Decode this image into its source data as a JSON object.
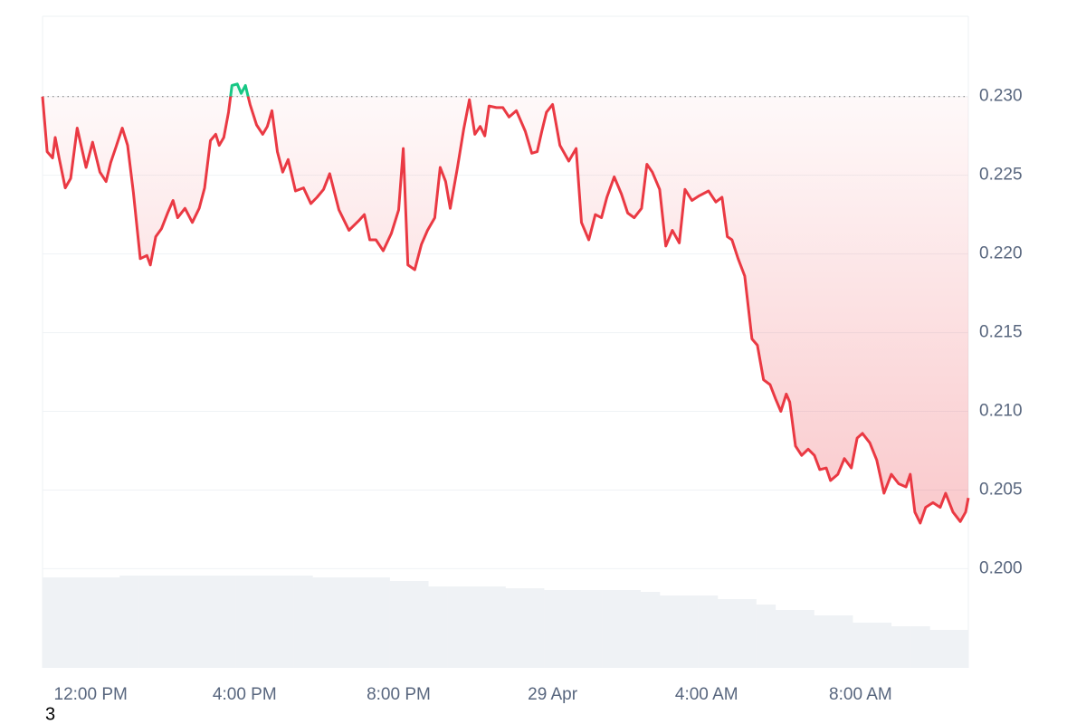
{
  "chart_data": {
    "type": "line",
    "xlim": [
      -1.25,
      22.8
    ],
    "xticks": [
      {
        "value": 0,
        "label": "12:00 PM"
      },
      {
        "value": 4,
        "label": "4:00 PM"
      },
      {
        "value": 8,
        "label": "8:00 PM"
      },
      {
        "value": 12,
        "label": "29 Apr"
      },
      {
        "value": 16,
        "label": "4:00 AM"
      },
      {
        "value": 20,
        "label": "8:00 AM"
      }
    ],
    "ylim": [
      0.1937,
      0.2351
    ],
    "yticks": [
      {
        "value": 0.2,
        "label": "0.200"
      },
      {
        "value": 0.205,
        "label": "0.205"
      },
      {
        "value": 0.21,
        "label": "0.210"
      },
      {
        "value": 0.215,
        "label": "0.215"
      },
      {
        "value": 0.22,
        "label": "0.220"
      },
      {
        "value": 0.225,
        "label": "0.225"
      },
      {
        "value": 0.23,
        "label": "0.230"
      }
    ],
    "grid": true,
    "baseline": 0.23,
    "color_up": "#16c784",
    "color_down": "#ea3943",
    "x": [
      -1.25,
      -1.13,
      -0.99,
      -0.92,
      -0.82,
      -0.66,
      -0.52,
      -0.35,
      -0.12,
      0.05,
      0.24,
      0.4,
      0.52,
      0.66,
      0.82,
      0.96,
      1.11,
      1.29,
      1.46,
      1.55,
      1.69,
      1.84,
      2.0,
      2.14,
      2.26,
      2.45,
      2.64,
      2.82,
      2.96,
      3.11,
      3.25,
      3.34,
      3.46,
      3.58,
      3.67,
      3.81,
      3.91,
      4.02,
      4.14,
      4.31,
      4.47,
      4.59,
      4.71,
      4.85,
      4.99,
      5.13,
      5.32,
      5.53,
      5.72,
      5.88,
      6.05,
      6.21,
      6.45,
      6.71,
      6.96,
      7.11,
      7.25,
      7.41,
      7.6,
      7.81,
      8.0,
      8.12,
      8.24,
      8.42,
      8.59,
      8.75,
      8.94,
      9.08,
      9.22,
      9.34,
      9.53,
      9.69,
      9.84,
      9.98,
      10.12,
      10.24,
      10.35,
      10.54,
      10.71,
      10.87,
      11.06,
      11.29,
      11.46,
      11.6,
      11.72,
      11.84,
      12.0,
      12.19,
      12.42,
      12.61,
      12.75,
      12.94,
      13.11,
      13.27,
      13.41,
      13.6,
      13.79,
      13.95,
      14.12,
      14.31,
      14.45,
      14.59,
      14.78,
      14.94,
      15.11,
      15.29,
      15.44,
      15.62,
      15.81,
      16.05,
      16.24,
      16.4,
      16.54,
      16.66,
      16.82,
      16.99,
      17.18,
      17.32,
      17.48,
      17.65,
      17.79,
      17.93,
      18.07,
      18.16,
      18.31,
      18.47,
      18.64,
      18.8,
      18.94,
      19.11,
      19.22,
      19.41,
      19.58,
      19.76,
      19.91,
      20.05,
      20.24,
      20.42,
      20.61,
      20.8,
      20.99,
      21.18,
      21.29,
      21.41,
      21.55,
      21.69,
      21.88,
      22.07,
      22.21,
      22.4,
      22.59,
      22.73,
      22.8
    ],
    "series": [
      {
        "values": [
          0.23,
          0.2265,
          0.2261,
          0.2274,
          0.2261,
          0.2242,
          0.2248,
          0.228,
          0.2255,
          0.2271,
          0.2252,
          0.2246,
          0.2258,
          0.2268,
          0.228,
          0.2269,
          0.2239,
          0.2197,
          0.2199,
          0.2193,
          0.2211,
          0.2216,
          0.2226,
          0.2234,
          0.2223,
          0.2229,
          0.222,
          0.2229,
          0.2242,
          0.2272,
          0.2276,
          0.2269,
          0.2274,
          0.229,
          0.2307,
          0.2308,
          0.2302,
          0.2307,
          0.2295,
          0.2282,
          0.2276,
          0.2281,
          0.2291,
          0.2265,
          0.2252,
          0.226,
          0.224,
          0.2242,
          0.2232,
          0.2236,
          0.2241,
          0.2251,
          0.2228,
          0.2215,
          0.2221,
          0.2225,
          0.2209,
          0.2209,
          0.2202,
          0.2213,
          0.2228,
          0.2267,
          0.2193,
          0.219,
          0.2206,
          0.2215,
          0.2223,
          0.2255,
          0.2246,
          0.2229,
          0.2255,
          0.2279,
          0.2298,
          0.2276,
          0.2281,
          0.2275,
          0.2294,
          0.2293,
          0.2293,
          0.2287,
          0.2291,
          0.2278,
          0.2264,
          0.2265,
          0.2278,
          0.229,
          0.2295,
          0.2269,
          0.2259,
          0.2267,
          0.222,
          0.2209,
          0.2225,
          0.2223,
          0.2236,
          0.2249,
          0.2238,
          0.2226,
          0.2223,
          0.2229,
          0.2257,
          0.2252,
          0.2241,
          0.2205,
          0.2215,
          0.2207,
          0.2241,
          0.2234,
          0.2237,
          0.224,
          0.2233,
          0.2236,
          0.2211,
          0.2209,
          0.2197,
          0.2186,
          0.2146,
          0.2142,
          0.212,
          0.2117,
          0.2108,
          0.21,
          0.2111,
          0.2106,
          0.2078,
          0.2072,
          0.2076,
          0.2072,
          0.2063,
          0.2064,
          0.2056,
          0.206,
          0.207,
          0.2064,
          0.2083,
          0.2086,
          0.208,
          0.2069,
          0.2048,
          0.206,
          0.2054,
          0.2052,
          0.206,
          0.2036,
          0.2029,
          0.2039,
          0.2042,
          0.2039,
          0.2048,
          0.2036,
          0.203,
          0.2036,
          0.2045
        ]
      }
    ],
    "volume": {
      "color": "#eff2f5",
      "ylim": [
        0,
        100
      ],
      "values": [
        100,
        100,
        100,
        100,
        102,
        102,
        102,
        102,
        102,
        102,
        102,
        102,
        102,
        102,
        100,
        100,
        100,
        100,
        96,
        96,
        90,
        90,
        90,
        90,
        88,
        88,
        86,
        86,
        86,
        86,
        86,
        84,
        80,
        80,
        80,
        76,
        76,
        70,
        64,
        64,
        58,
        58,
        50,
        50,
        46,
        46,
        42,
        42
      ]
    }
  },
  "page_number": "3"
}
